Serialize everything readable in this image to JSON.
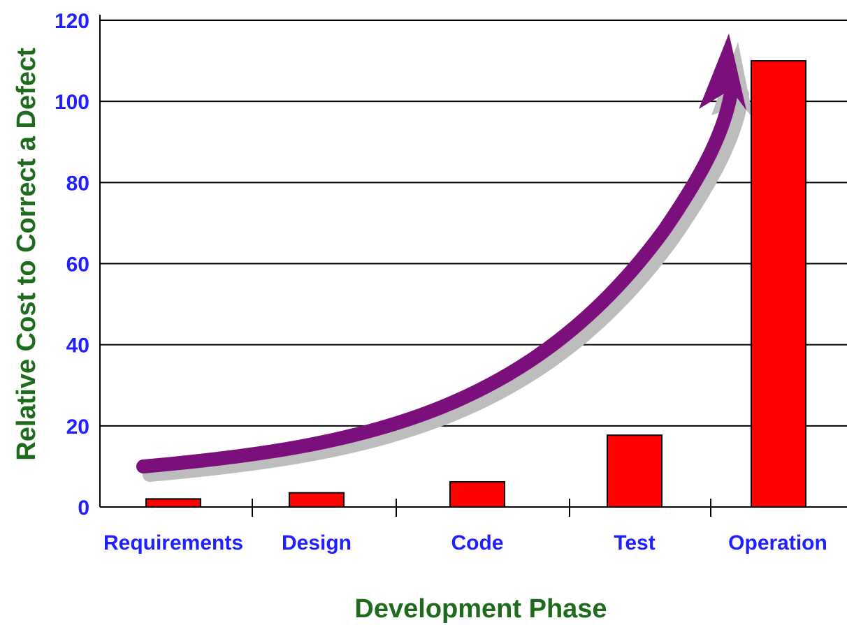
{
  "chart_data": {
    "type": "bar",
    "title": "",
    "xlabel": "Development Phase",
    "ylabel": "Relative Cost to Correct a Defect",
    "categories": [
      "Requirements",
      "Design",
      "Code",
      "Test",
      "Operation"
    ],
    "values": [
      2,
      3.5,
      6.2,
      17.7,
      110
    ],
    "yticks": [
      "0",
      "20",
      "40",
      "60",
      "80",
      "100",
      "120"
    ],
    "ylim": [
      0,
      120
    ],
    "grid": true,
    "legend": "none",
    "annotation": "curved purple arrow rising from Requirements toward Operation, indicating exponentially increasing cost"
  },
  "colors": {
    "bar_fill": "#ff0000",
    "bar_stroke": "#000000",
    "tick_label": "#1f1fff",
    "axis_title": "#1e6b1e",
    "arrow": "#7b0f7b",
    "arrow_shadow": "#bdbdbd",
    "gridline": "#000000"
  }
}
